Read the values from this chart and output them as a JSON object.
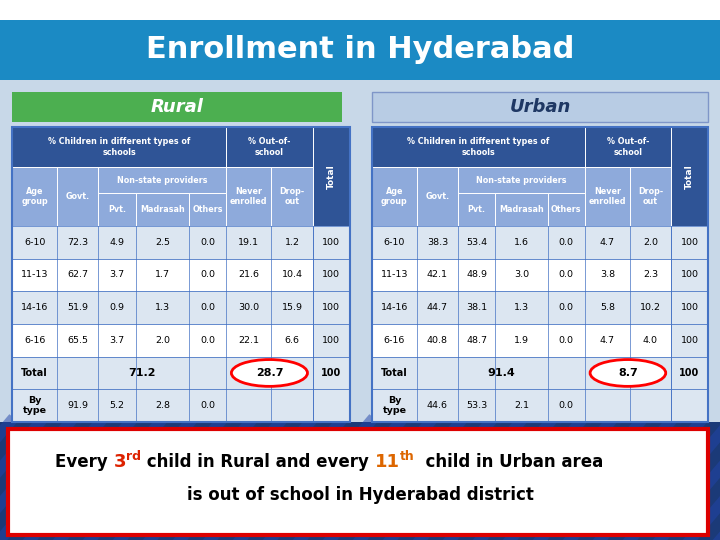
{
  "title": "Enrollment in Hyderabad",
  "title_bg": "#1b8ac4",
  "title_color": "white",
  "bg_color": "#c8d8e8",
  "rural_label": "Rural",
  "urban_label": "Urban",
  "rural_bg": "#4caf50",
  "urban_bg": "#b8cce4",
  "urban_border": "#7f96c8",
  "table_header_bg": "#2f5496",
  "table_subheader_bg": "#8eaadb",
  "table_row_even": "#dce6f1",
  "table_row_odd": "white",
  "table_border": "#4472c4",
  "rural_data": {
    "rows": [
      [
        "6-10",
        "72.3",
        "4.9",
        "2.5",
        "0.0",
        "19.1",
        "1.2",
        "100"
      ],
      [
        "11-13",
        "62.7",
        "3.7",
        "1.7",
        "0.0",
        "21.6",
        "10.4",
        "100"
      ],
      [
        "14-16",
        "51.9",
        "0.9",
        "1.3",
        "0.0",
        "30.0",
        "15.9",
        "100"
      ],
      [
        "6-16",
        "65.5",
        "3.7",
        "2.0",
        "0.0",
        "22.1",
        "6.6",
        "100"
      ],
      [
        "Total",
        "",
        "",
        "71.2",
        "",
        "28.7",
        "",
        "100"
      ],
      [
        "By\ntype",
        "91.9",
        "5.2",
        "2.8",
        "0.0",
        "",
        "",
        ""
      ]
    ]
  },
  "urban_data": {
    "rows": [
      [
        "6-10",
        "38.3",
        "53.4",
        "1.6",
        "0.0",
        "4.7",
        "2.0",
        "100"
      ],
      [
        "11-13",
        "42.1",
        "48.9",
        "3.0",
        "0.0",
        "3.8",
        "2.3",
        "100"
      ],
      [
        "14-16",
        "44.7",
        "38.1",
        "1.3",
        "0.0",
        "5.8",
        "10.2",
        "100"
      ],
      [
        "6-16",
        "40.8",
        "48.7",
        "1.9",
        "0.0",
        "4.7",
        "4.0",
        "100"
      ],
      [
        "Total",
        "",
        "",
        "91.4",
        "",
        "8.7",
        "",
        "100"
      ],
      [
        "By\ntype",
        "44.6",
        "53.3",
        "2.1",
        "0.0",
        "",
        "",
        ""
      ]
    ]
  },
  "footer_3rd_color": "#dd2200",
  "footer_11th_color": "#dd6600",
  "footer_bg": "white",
  "footer_border": "#dd0000"
}
